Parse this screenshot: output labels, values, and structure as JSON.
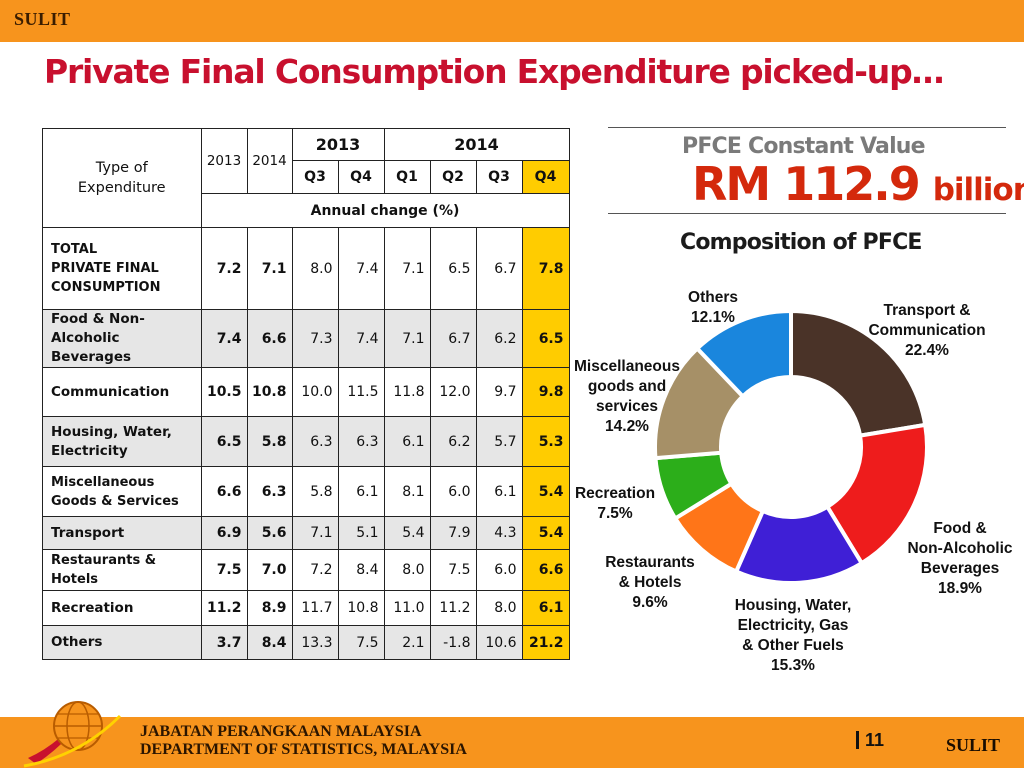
{
  "header": {
    "classification": "SULIT"
  },
  "slide_title": "Private Final Consumption Expenditure picked-up…",
  "table": {
    "type_header": "Type of Expenditure",
    "col_2013": "2013",
    "col_2014": "2014",
    "group_2013": "2013",
    "group_2014": "2014",
    "quarters": [
      "Q3",
      "Q4",
      "Q1",
      "Q2",
      "Q3",
      "Q4"
    ],
    "annual_change": "Annual change  (%)",
    "rows": [
      {
        "label": "TOTAL PRIVATE FINAL CONSUMPTION",
        "y2013": "7.2",
        "y2014": "7.1",
        "q": [
          "8.0",
          "7.4",
          "7.1",
          "6.5",
          "6.7",
          "7.8"
        ]
      },
      {
        "label": "Food & Non-Alcoholic Beverages",
        "y2013": "7.4",
        "y2014": "6.6",
        "q": [
          "7.3",
          "7.4",
          "7.1",
          "6.7",
          "6.2",
          "6.5"
        ]
      },
      {
        "label": "Communication",
        "y2013": "10.5",
        "y2014": "10.8",
        "q": [
          "10.0",
          "11.5",
          "11.8",
          "12.0",
          "9.7",
          "9.8"
        ]
      },
      {
        "label": "Housing, Water, Electricity",
        "y2013": "6.5",
        "y2014": "5.8",
        "q": [
          "6.3",
          "6.3",
          "6.1",
          "6.2",
          "5.7",
          "5.3"
        ]
      },
      {
        "label": "Miscellaneous Goods & Services",
        "y2013": "6.6",
        "y2014": "6.3",
        "q": [
          "5.8",
          "6.1",
          "8.1",
          "6.0",
          "6.1",
          "5.4"
        ]
      },
      {
        "label": "Transport",
        "y2013": "6.9",
        "y2014": "5.6",
        "q": [
          "7.1",
          "5.1",
          "5.4",
          "7.9",
          "4.3",
          "5.4"
        ]
      },
      {
        "label": "Restaurants & Hotels",
        "y2013": "7.5",
        "y2014": "7.0",
        "q": [
          "7.2",
          "8.4",
          "8.0",
          "7.5",
          "6.0",
          "6.6"
        ]
      },
      {
        "label": "Recreation",
        "y2013": "11.2",
        "y2014": "8.9",
        "q": [
          "11.7",
          "10.8",
          "11.0",
          "11.2",
          "8.0",
          "6.1"
        ]
      },
      {
        "label": "Others",
        "y2013": "3.7",
        "y2014": "8.4",
        "q": [
          "13.3",
          "7.5",
          "2.1",
          "-1.8",
          "10.6",
          "21.2"
        ]
      }
    ]
  },
  "pfce": {
    "label": "PFCE Constant Value",
    "value": "RM 112.9",
    "unit": "billion"
  },
  "chart_data": {
    "type": "pie",
    "title": "Composition of PFCE",
    "donut": true,
    "slices": [
      {
        "name": "Transport & Communication",
        "value": 22.4,
        "label": "22.4%",
        "color": "#4a3328"
      },
      {
        "name": "Food & Non-Alcoholic Beverages",
        "value": 18.9,
        "label": "18.9%",
        "color": "#ee1c1c"
      },
      {
        "name": "Housing, Water, Electricity, Gas & Other Fuels",
        "value": 15.3,
        "label": "15.3%",
        "color": "#3f1fd6"
      },
      {
        "name": "Restaurants & Hotels",
        "value": 9.6,
        "label": "9.6%",
        "color": "#ff7518"
      },
      {
        "name": "Recreation",
        "value": 7.5,
        "label": "7.5%",
        "color": "#2cae1a"
      },
      {
        "name": "Miscellaneous goods and services",
        "value": 14.2,
        "label": "14.2%",
        "color": "#a69067"
      },
      {
        "name": "Others",
        "value": 12.1,
        "label": "12.1%",
        "color": "#1a86dd"
      }
    ]
  },
  "footer": {
    "dept_ms": "JABATAN PERANGKAAN MALAYSIA",
    "dept_en": "DEPARTMENT OF STATISTICS, MALAYSIA",
    "page": "11",
    "classification": "SULIT"
  }
}
